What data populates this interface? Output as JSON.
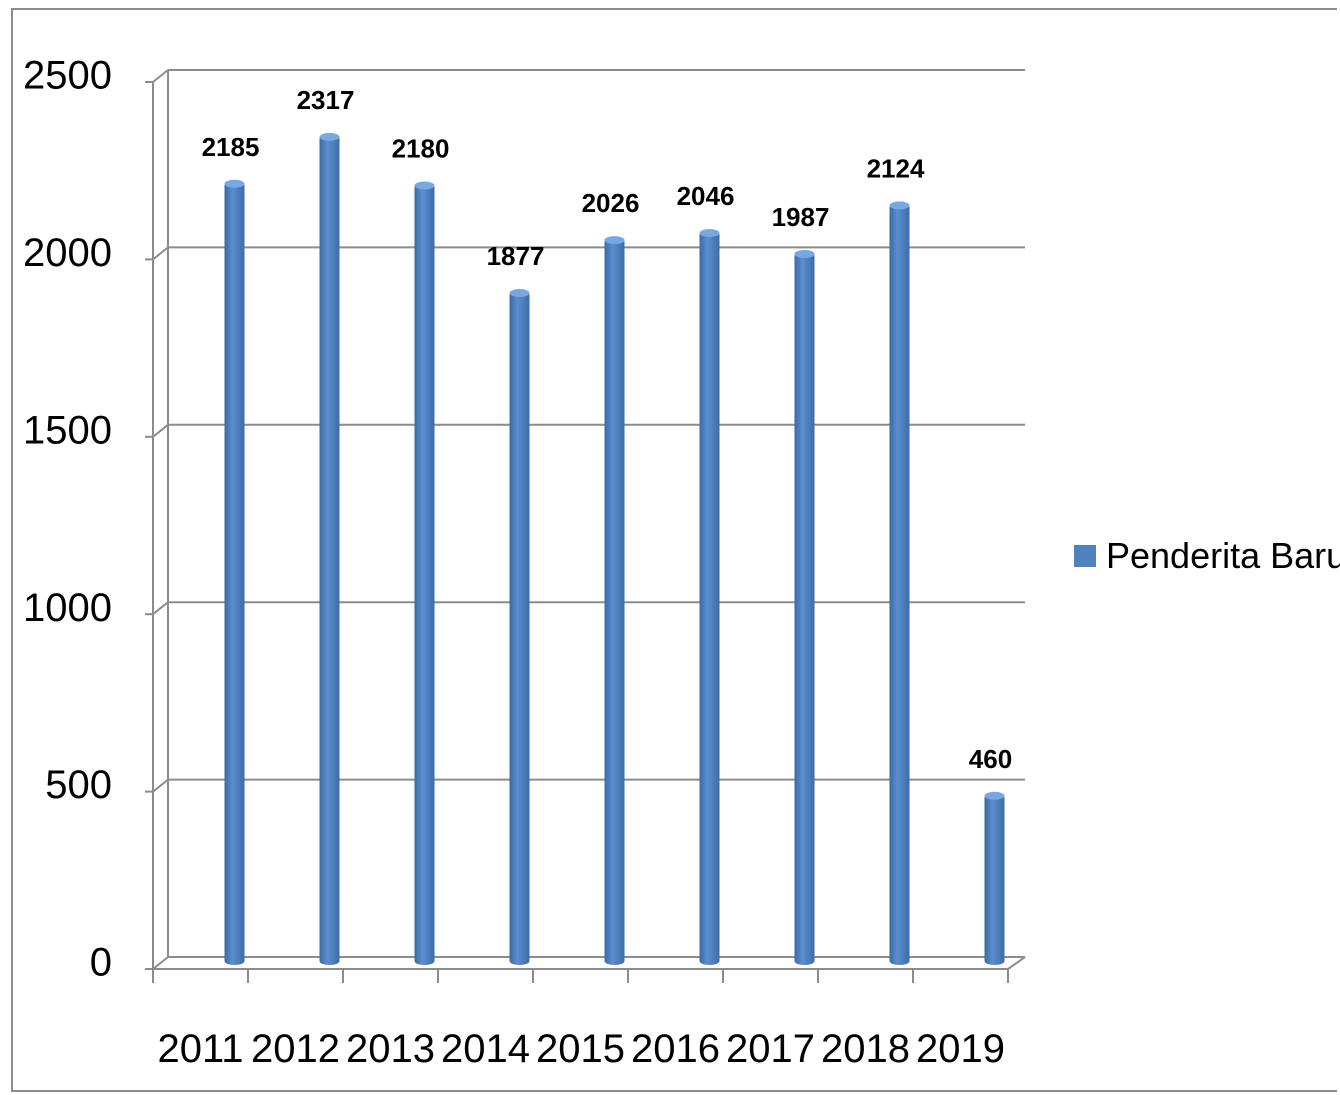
{
  "chart_data": {
    "type": "bar",
    "categories": [
      "2011",
      "2012",
      "2013",
      "2014",
      "2015",
      "2016",
      "2017",
      "2018",
      "2019"
    ],
    "series": [
      {
        "name": "Penderita Baru",
        "values": [
          2185,
          2317,
          2180,
          1877,
          2026,
          2046,
          1987,
          2124,
          460
        ],
        "color": "#4f81bd"
      }
    ],
    "y_ticks": [
      "0",
      "500",
      "1000",
      "1500",
      "2000",
      "2500"
    ],
    "ylim": [
      0,
      2500
    ],
    "grid": true,
    "legend_position": "right",
    "title": "",
    "xlabel": "",
    "ylabel": ""
  }
}
